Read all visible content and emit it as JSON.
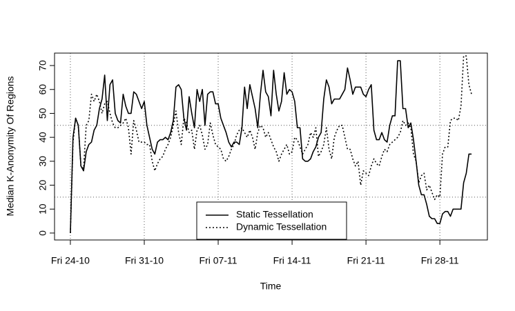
{
  "chart_data": {
    "type": "line",
    "x_label": "Time",
    "y_label": "Median K-Anonymity Of Regions",
    "x": [
      0,
      0.25,
      0.5,
      0.75,
      1,
      1.25,
      1.5,
      1.75,
      2,
      2.25,
      2.5,
      2.75,
      3,
      3.25,
      3.5,
      3.75,
      4,
      4.25,
      4.5,
      4.75,
      5,
      5.25,
      5.5,
      5.75,
      6,
      6.25,
      6.5,
      6.75,
      7,
      7.25,
      7.5,
      7.75,
      8,
      8.25,
      8.5,
      8.75,
      9,
      9.25,
      9.5,
      9.75,
      10,
      10.25,
      10.5,
      10.75,
      11,
      11.25,
      11.5,
      11.75,
      12,
      12.25,
      12.5,
      12.75,
      13,
      13.25,
      13.5,
      13.75,
      14,
      14.25,
      14.5,
      14.75,
      15,
      15.25,
      15.5,
      15.75,
      16,
      16.25,
      16.5,
      16.75,
      17,
      17.25,
      17.5,
      17.75,
      18,
      18.25,
      18.5,
      18.75,
      19,
      19.25,
      19.5,
      19.75,
      20,
      20.25,
      20.5,
      20.75,
      21,
      21.25,
      21.5,
      21.75,
      22,
      22.25,
      22.5,
      22.75,
      23,
      23.25,
      23.5,
      23.75,
      24,
      24.25,
      24.5,
      24.75,
      25,
      25.25,
      25.5,
      25.75,
      26,
      26.25,
      26.5,
      26.75,
      27,
      27.25,
      27.5,
      27.75,
      28,
      28.25,
      28.5,
      28.75,
      29,
      29.25,
      29.5,
      29.75,
      30,
      30.25,
      30.5,
      30.75,
      31,
      31.25,
      31.5,
      31.75,
      32,
      32.25,
      32.5,
      32.75,
      33,
      33.25,
      33.5,
      33.75,
      34,
      34.25,
      34.5,
      34.75,
      35,
      35.25,
      35.5,
      35.75,
      36,
      36.25,
      36.5,
      36.75,
      37,
      37.25,
      37.5,
      37.75,
      38
    ],
    "series": [
      {
        "name": "Static Tessellation",
        "color": "#000000",
        "line_style": "solid",
        "values": [
          0,
          40,
          48,
          45,
          28,
          26,
          34,
          37,
          38,
          43,
          45,
          52,
          56,
          66,
          47,
          62,
          64,
          50,
          47,
          46,
          58,
          53,
          50,
          50,
          59,
          58,
          55,
          52,
          55,
          45,
          40,
          35,
          33,
          38,
          39,
          39,
          40,
          39,
          42,
          47,
          61,
          62,
          60,
          48,
          43,
          57,
          50,
          44,
          60,
          55,
          60,
          45,
          58,
          59,
          59,
          54,
          54,
          48,
          45,
          42,
          38,
          36,
          38,
          38,
          37,
          44,
          61,
          52,
          62,
          57,
          52,
          44,
          58,
          68,
          59,
          57,
          49,
          68,
          58,
          51,
          55,
          67,
          58,
          60,
          59,
          55,
          44,
          44,
          31,
          30,
          30,
          31,
          34,
          36,
          40,
          42,
          56,
          64,
          61,
          54,
          56,
          56,
          56,
          58,
          60,
          69,
          64,
          58,
          61,
          61,
          61,
          58,
          57,
          60,
          62,
          43,
          39,
          39,
          42,
          39,
          38,
          45,
          49,
          49,
          72,
          72,
          52,
          52,
          44,
          46,
          39,
          30,
          20,
          16,
          16,
          12,
          7,
          6,
          6,
          4,
          4,
          8,
          9,
          9,
          7,
          10,
          10,
          10,
          10,
          21,
          25,
          33,
          33
        ]
      },
      {
        "name": "Dynamic Tessellation",
        "color": "#000000",
        "line_style": "dotted",
        "values": [
          0,
          38,
          48,
          45,
          28,
          27,
          45,
          47,
          58,
          55,
          58,
          55,
          50,
          54,
          55,
          50,
          46,
          44,
          44,
          45,
          46,
          48,
          44,
          33,
          47,
          43,
          38,
          38,
          38,
          37,
          37,
          30,
          26,
          29,
          31,
          32,
          35,
          37,
          40,
          45,
          51,
          42,
          37,
          48,
          46,
          42,
          43,
          35,
          43,
          45,
          41,
          35,
          37,
          46,
          41,
          37,
          36,
          35,
          31,
          30,
          32,
          35,
          37,
          41,
          43,
          44,
          42,
          40,
          43,
          40,
          35,
          42,
          45,
          44,
          40,
          42,
          39,
          36,
          34,
          30,
          33,
          35,
          37,
          33,
          34,
          40,
          39,
          36,
          33,
          35,
          37,
          42,
          40,
          44,
          32,
          34,
          37,
          44,
          35,
          31,
          40,
          43,
          45,
          45,
          40,
          35,
          35,
          31,
          28,
          30,
          20,
          26,
          25,
          24,
          28,
          31,
          29,
          28,
          32,
          35,
          34,
          37,
          38,
          39,
          40,
          42,
          47,
          45,
          46,
          44,
          33,
          30,
          21,
          24,
          25,
          18,
          20,
          17,
          14,
          16,
          15,
          33,
          36,
          36,
          47,
          48,
          48,
          47,
          53,
          74,
          74,
          62,
          58
        ]
      }
    ],
    "xlim": [
      -1.5,
      39.5
    ],
    "ylim": [
      -2.9,
      75.2
    ],
    "xticks": [
      {
        "value": 0,
        "label": "Fri 24-10"
      },
      {
        "value": 7,
        "label": "Fri 31-10"
      },
      {
        "value": 14,
        "label": "Fri 07-11"
      },
      {
        "value": 21,
        "label": "Fri 14-11"
      },
      {
        "value": 28,
        "label": "Fri 21-11"
      },
      {
        "value": 35,
        "label": "Fri 28-11"
      }
    ],
    "yticks": [
      0,
      10,
      20,
      30,
      40,
      50,
      60,
      70
    ],
    "grid_x": true,
    "reference_lines_y": [
      15,
      45
    ],
    "legend": "bottom"
  }
}
